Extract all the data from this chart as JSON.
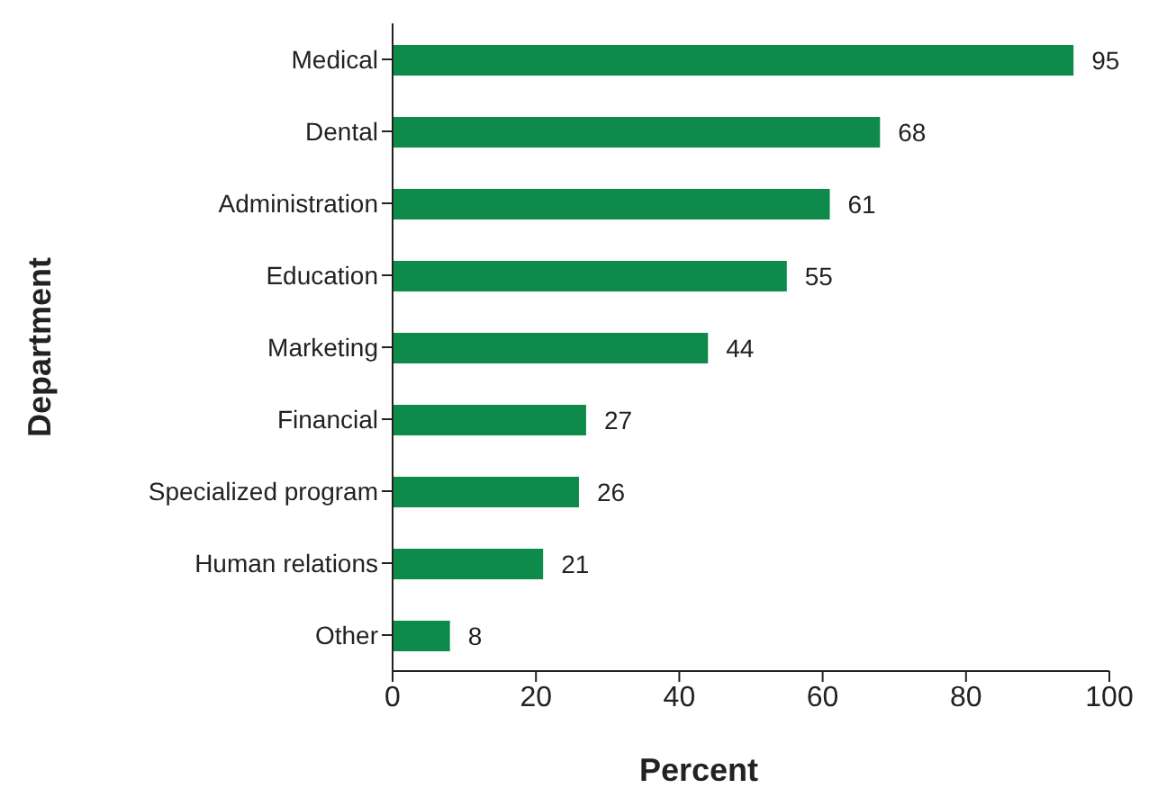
{
  "chart_data": {
    "type": "bar",
    "orientation": "horizontal",
    "categories": [
      "Medical",
      "Dental",
      "Administration",
      "Education",
      "Marketing",
      "Financial",
      "Specialized program",
      "Human relations",
      "Other"
    ],
    "values": [
      95,
      68,
      61,
      55,
      44,
      27,
      26,
      21,
      8
    ],
    "color": "#0e8a4a",
    "xlim": [
      0,
      100
    ],
    "xticks": [
      0,
      20,
      40,
      60,
      80,
      100
    ],
    "xlabel": "Percent",
    "ylabel": "Department",
    "data_labels": true,
    "grid": false,
    "legend": false
  }
}
